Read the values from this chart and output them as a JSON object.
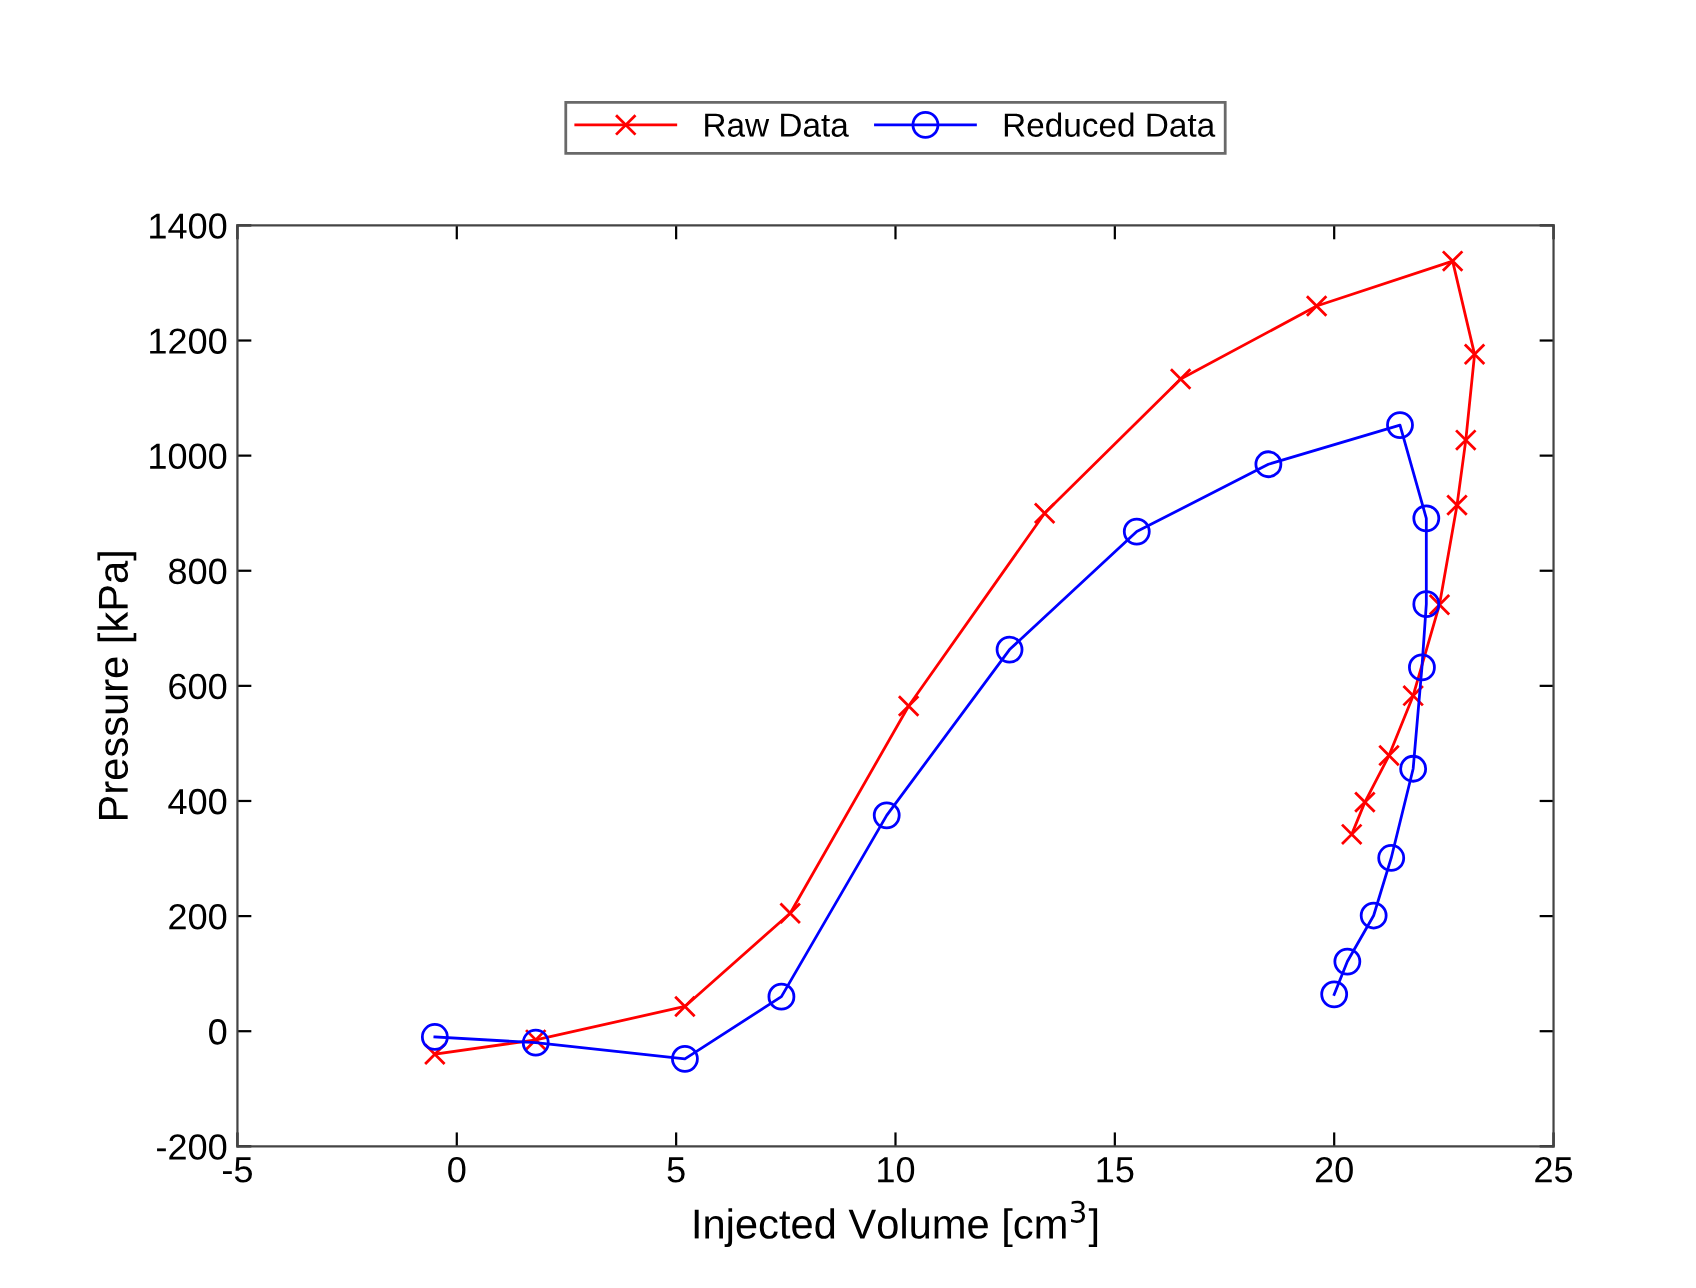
{
  "chart_data": {
    "type": "line",
    "xlabel": "Injected Volume [cm$^{3}$]",
    "ylabel": "Pressure [kPa]",
    "xlim": [
      -5,
      25
    ],
    "xticks": [
      -5,
      0,
      5,
      10,
      15,
      20,
      25
    ],
    "ylim": [
      -200,
      1400
    ],
    "yticks": [
      -200,
      0,
      200,
      400,
      600,
      800,
      1000,
      1200,
      1400
    ],
    "grid": false,
    "legend": "top",
    "series": [
      {
        "name": "Raw Data",
        "color": "#ff0000",
        "marker": "cross",
        "line_style": "solid",
        "x": [
          -0.5,
          1.8,
          5.2,
          7.6,
          10.3,
          13.4,
          16.5,
          19.6,
          22.7,
          23.2,
          23.0,
          22.8,
          22.4,
          21.8,
          21.25,
          20.7,
          20.4
        ],
        "values": [
          -40,
          -15,
          43,
          205,
          565,
          900,
          1133,
          1260,
          1338,
          1176,
          1027,
          914,
          741,
          583,
          479,
          398,
          342
        ]
      },
      {
        "name": "Reduced Data",
        "color": "#0000ff",
        "marker": "circle",
        "line_style": "solid",
        "x": [
          -0.5,
          1.8,
          5.2,
          7.4,
          9.8,
          12.6,
          15.5,
          18.5,
          21.5,
          22.1,
          22.1,
          22.0,
          21.8,
          21.3,
          20.9,
          20.3,
          20.0
        ],
        "values": [
          -10,
          -20,
          -48,
          60,
          375,
          663,
          868,
          985,
          1053,
          891,
          742,
          632,
          456,
          301,
          201,
          121,
          64
        ]
      }
    ]
  }
}
